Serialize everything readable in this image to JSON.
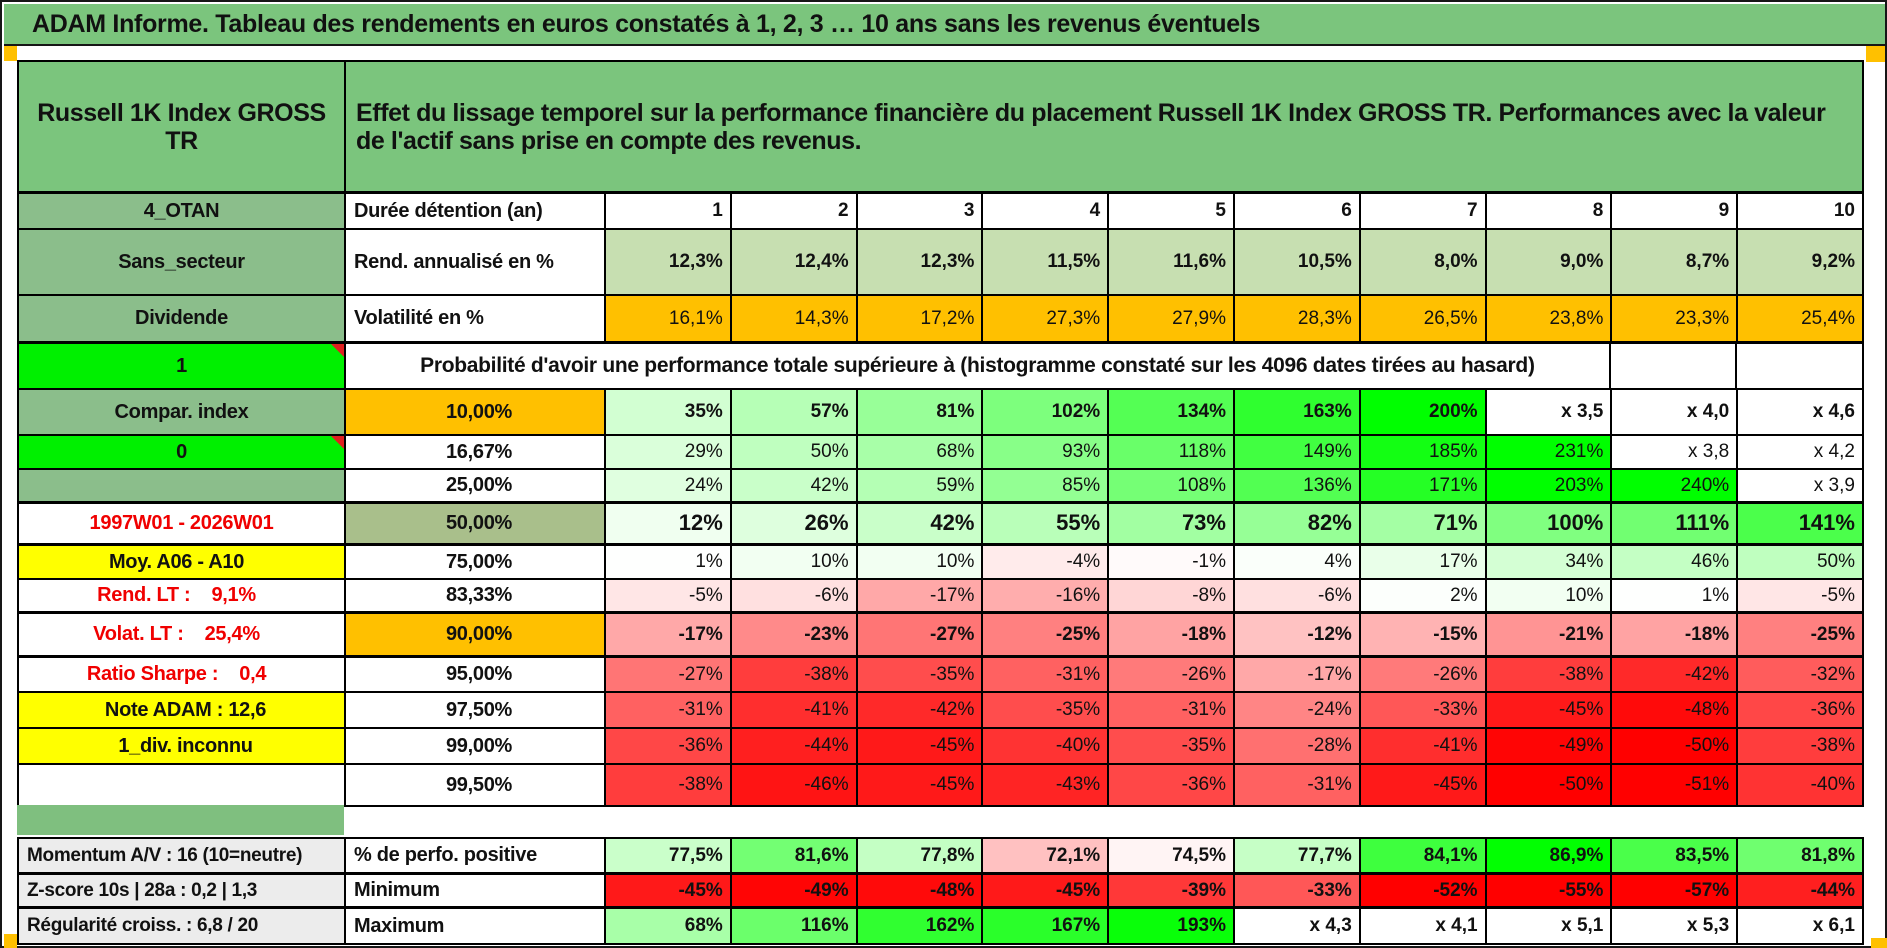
{
  "page": {
    "title": "ADAM Informe. Tableau des rendements en euros constatés à 1, 2, 3 … 10 ans sans les revenus éventuels"
  },
  "colors": {
    "title_green": "#7BC57D",
    "label_green": "#8BBE8B",
    "bright_green": "#00F000",
    "sage_green": "#A9BF8B",
    "separator_green": "#7FBF7F",
    "flat_green": "#C7DFB1",
    "orange": "#FFC000",
    "yellow": "#FFFF00",
    "gray": "#ECECEC",
    "red_text": "#F00000",
    "comment_red": "#E02020",
    "print_orange": "#FFB300"
  },
  "table": {
    "asset_name": "Russell 1K Index GROSS TR",
    "description": "Effet du lissage temporel sur la performance financière du placement Russell 1K Index GROSS TR. Performances avec la valeur de l'actif sans prise en compte des revenus.",
    "probability_banner": "Probabilité d'avoir une performance totale supérieure à (histogramme constaté sur les 4096 dates tirées au hasard)",
    "rows": [
      {
        "left": {
          "text": "4_OTAN",
          "style": "green"
        },
        "head": {
          "text": "Durée détention (an)",
          "style": "white-left"
        },
        "fmt": "cols",
        "bold": true,
        "cells": [
          "1",
          "2",
          "3",
          "4",
          "5",
          "6",
          "7",
          "8",
          "9",
          "10"
        ]
      },
      {
        "left": {
          "text": "Sans_secteur",
          "style": "green"
        },
        "head": {
          "text": "Rend. annualisé en %",
          "style": "white-left"
        },
        "fmt": "flatgreen",
        "bold": true,
        "cells": [
          "12,3%",
          "12,4%",
          "12,3%",
          "11,5%",
          "11,6%",
          "10,5%",
          "8,0%",
          "9,0%",
          "8,7%",
          "9,2%"
        ]
      },
      {
        "left": {
          "text": "Dividende",
          "style": "green"
        },
        "head": {
          "text": "Volatilité en %",
          "style": "white-left"
        },
        "fmt": "orange",
        "bold": false,
        "cells": [
          "16,1%",
          "14,3%",
          "17,2%",
          "27,3%",
          "27,9%",
          "28,3%",
          "26,5%",
          "23,8%",
          "23,3%",
          "25,4%"
        ]
      },
      {
        "left": {
          "text": "1",
          "style": "bright",
          "comment": true
        },
        "banner": true,
        "empty_cells": 2
      },
      {
        "left": {
          "text": "Compar. index",
          "style": "green"
        },
        "head": {
          "text": "10,00%",
          "style": "orange-center"
        },
        "fmt": "scale",
        "bold": true,
        "cells": [
          "35%",
          "57%",
          "81%",
          "102%",
          "134%",
          "163%",
          "200%",
          "x 3,5",
          "x 4,0",
          "x 4,6"
        ]
      },
      {
        "left": {
          "text": "0",
          "style": "bright",
          "comment": true
        },
        "head": {
          "text": "16,67%",
          "style": "white-center"
        },
        "fmt": "scale",
        "bold": false,
        "cells": [
          "29%",
          "50%",
          "68%",
          "93%",
          "118%",
          "149%",
          "185%",
          "231%",
          "x 3,8",
          "x 4,2"
        ]
      },
      {
        "left": {
          "text": "",
          "style": "green"
        },
        "head": {
          "text": "25,00%",
          "style": "white-center"
        },
        "fmt": "scale",
        "bold": false,
        "cells": [
          "24%",
          "42%",
          "59%",
          "85%",
          "108%",
          "136%",
          "171%",
          "203%",
          "240%",
          "x 3,9"
        ]
      },
      {
        "left": {
          "text": "1997W01 - 2026W01",
          "style": "white-red"
        },
        "head": {
          "text": "50,00%",
          "style": "sage-center",
          "big": true
        },
        "fmt": "scale",
        "bold": true,
        "big": true,
        "cells": [
          "12%",
          "26%",
          "42%",
          "55%",
          "73%",
          "82%",
          "71%",
          "100%",
          "111%",
          "141%"
        ]
      },
      {
        "left": {
          "text": "Moy. A06 - A10",
          "style": "yellow-right"
        },
        "head": {
          "text": "75,00%",
          "style": "white-center"
        },
        "fmt": "scale",
        "bold": false,
        "cells": [
          "1%",
          "10%",
          "10%",
          "-4%",
          "-1%",
          "4%",
          "17%",
          "34%",
          "46%",
          "50%"
        ]
      },
      {
        "left": {
          "text": "Rend. LT :    9,1%",
          "style": "white-red-right"
        },
        "head": {
          "text": "83,33%",
          "style": "white-center"
        },
        "fmt": "scale",
        "bold": false,
        "cells": [
          "-5%",
          "-6%",
          "-17%",
          "-16%",
          "-8%",
          "-6%",
          "2%",
          "10%",
          "1%",
          "-5%"
        ]
      },
      {
        "left": {
          "text": "Volat. LT :    25,4%",
          "style": "white-red-right"
        },
        "head": {
          "text": "90,00%",
          "style": "orange-center"
        },
        "fmt": "scale",
        "bold": true,
        "cells": [
          "-17%",
          "-23%",
          "-27%",
          "-25%",
          "-18%",
          "-12%",
          "-15%",
          "-21%",
          "-18%",
          "-25%"
        ]
      },
      {
        "left": {
          "text": "Ratio Sharpe :    0,4",
          "style": "white-red-right"
        },
        "head": {
          "text": "95,00%",
          "style": "white-center"
        },
        "fmt": "scale",
        "bold": false,
        "cells": [
          "-27%",
          "-38%",
          "-35%",
          "-31%",
          "-26%",
          "-17%",
          "-26%",
          "-38%",
          "-42%",
          "-32%"
        ]
      },
      {
        "left": {
          "text": "Note ADAM : 12,6",
          "style": "yellow-left"
        },
        "head": {
          "text": "97,50%",
          "style": "white-center"
        },
        "fmt": "scale",
        "bold": false,
        "cells": [
          "-31%",
          "-41%",
          "-42%",
          "-35%",
          "-31%",
          "-24%",
          "-33%",
          "-45%",
          "-48%",
          "-36%"
        ]
      },
      {
        "left": {
          "text": "1_div. inconnu",
          "style": "yellow-left"
        },
        "head": {
          "text": "99,00%",
          "style": "white-center"
        },
        "fmt": "scale",
        "bold": false,
        "cells": [
          "-36%",
          "-44%",
          "-45%",
          "-40%",
          "-35%",
          "-28%",
          "-41%",
          "-49%",
          "-50%",
          "-38%"
        ]
      },
      {
        "left": {
          "text": "",
          "style": "white"
        },
        "head": {
          "text": "99,50%",
          "style": "white-center"
        },
        "fmt": "scale",
        "bold": false,
        "cells": [
          "-38%",
          "-46%",
          "-45%",
          "-43%",
          "-36%",
          "-31%",
          "-45%",
          "-50%",
          "-51%",
          "-40%"
        ]
      }
    ],
    "bottom_rows": [
      {
        "left": {
          "text": "Momentum A/V : 16 (10=neutre)",
          "style": "gray-left"
        },
        "head": {
          "text": "% de perfo. positive",
          "style": "white-left"
        },
        "fmt": "perfo",
        "bold": true,
        "cells": [
          "77,5%",
          "81,6%",
          "77,8%",
          "72,1%",
          "74,5%",
          "77,7%",
          "84,1%",
          "86,9%",
          "83,5%",
          "81,8%"
        ]
      },
      {
        "left": {
          "text": "Z-score 10s | 28a : 0,2 | 1,3",
          "style": "gray-left"
        },
        "head": {
          "text": "Minimum",
          "style": "white-left"
        },
        "fmt": "scale",
        "bold": true,
        "cells": [
          "-45%",
          "-49%",
          "-48%",
          "-45%",
          "-39%",
          "-33%",
          "-52%",
          "-55%",
          "-57%",
          "-44%"
        ]
      },
      {
        "left": {
          "text": "Régularité croiss. : 6,8 / 20",
          "style": "gray-left"
        },
        "head": {
          "text": "Maximum",
          "style": "white-left"
        },
        "fmt": "scale",
        "bold": true,
        "cells": [
          "68%",
          "116%",
          "162%",
          "167%",
          "193%",
          "x 4,3",
          "x 4,1",
          "x 5,1",
          "x 5,3",
          "x 6,1"
        ]
      }
    ]
  }
}
